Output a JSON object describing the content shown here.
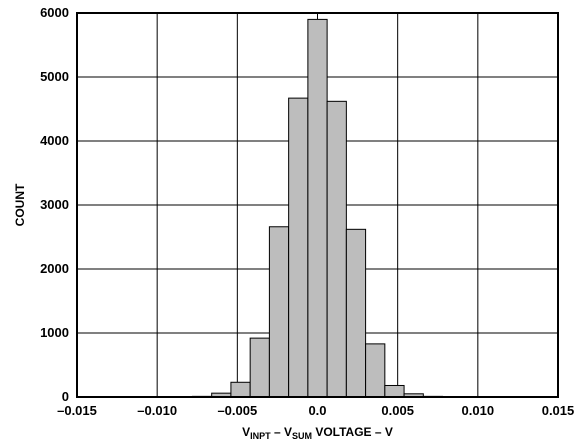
{
  "chart_data": {
    "type": "bar",
    "xlabel": {
      "v1": "V",
      "v1_sub": "INPT",
      "dash": " – ",
      "v2": "V",
      "v2_sub": "SUM",
      "rest": " VOLTAGE – V"
    },
    "ylabel": "COUNT",
    "xlim": [
      -0.015,
      0.015
    ],
    "ylim": [
      0,
      6000
    ],
    "grid": true,
    "legend": "none",
    "bar_color": "#bdbdbd",
    "bin_width": 0.0012,
    "x_ticks": [
      {
        "value": -0.015,
        "label": "–0.015"
      },
      {
        "value": -0.01,
        "label": "–0.010"
      },
      {
        "value": -0.005,
        "label": "–0.005"
      },
      {
        "value": 0.0,
        "label": "0.0"
      },
      {
        "value": 0.005,
        "label": "0.005"
      },
      {
        "value": 0.01,
        "label": "0.010"
      },
      {
        "value": 0.015,
        "label": "0.015"
      }
    ],
    "y_ticks": [
      {
        "value": 0,
        "label": "0"
      },
      {
        "value": 1000,
        "label": "1000"
      },
      {
        "value": 2000,
        "label": "2000"
      },
      {
        "value": 3000,
        "label": "3000"
      },
      {
        "value": 4000,
        "label": "4000"
      },
      {
        "value": 5000,
        "label": "5000"
      },
      {
        "value": 6000,
        "label": "6000"
      }
    ],
    "bins": [
      {
        "x": -0.0084,
        "count": 5
      },
      {
        "x": -0.0072,
        "count": 10
      },
      {
        "x": -0.006,
        "count": 60
      },
      {
        "x": -0.0048,
        "count": 230
      },
      {
        "x": -0.0036,
        "count": 920
      },
      {
        "x": -0.0024,
        "count": 2660
      },
      {
        "x": -0.0012,
        "count": 4670
      },
      {
        "x": 0.0,
        "count": 5900
      },
      {
        "x": 0.0012,
        "count": 4620
      },
      {
        "x": 0.0024,
        "count": 2620
      },
      {
        "x": 0.0036,
        "count": 830
      },
      {
        "x": 0.0048,
        "count": 180
      },
      {
        "x": 0.006,
        "count": 50
      },
      {
        "x": 0.0072,
        "count": 10
      },
      {
        "x": 0.0084,
        "count": 5
      }
    ]
  }
}
